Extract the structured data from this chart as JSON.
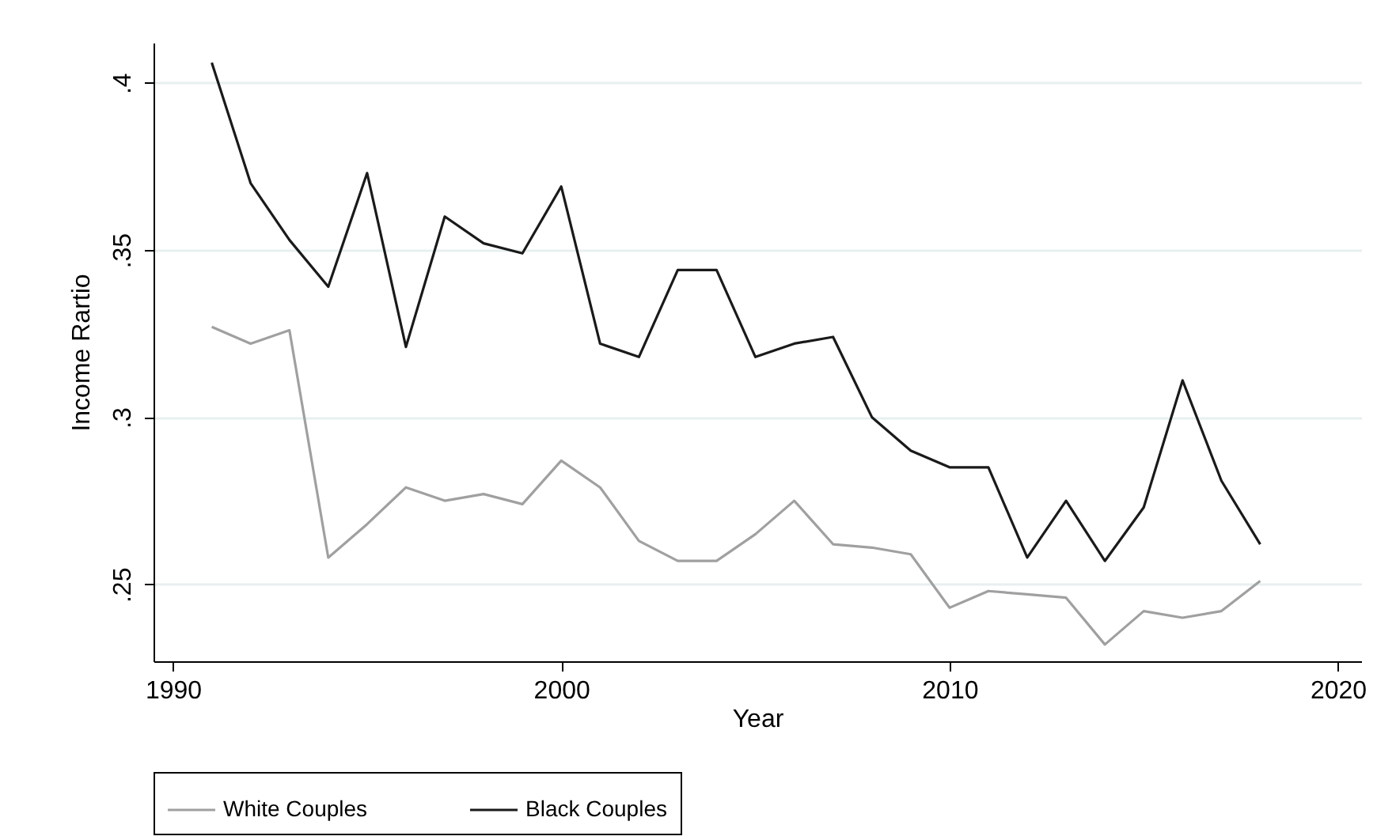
{
  "chart_data": {
    "type": "line",
    "xlabel": "Year",
    "ylabel": "Income Rartio",
    "x": [
      1991,
      1992,
      1993,
      1994,
      1995,
      1996,
      1997,
      1998,
      1999,
      2000,
      2001,
      2002,
      2003,
      2004,
      2005,
      2006,
      2007,
      2008,
      2009,
      2010,
      2011,
      2012,
      2013,
      2014,
      2015,
      2016,
      2017,
      2018
    ],
    "xlim": [
      1989.5,
      2020.6
    ],
    "xticks": [
      1990,
      2000,
      2010,
      2020
    ],
    "ylim": [
      0.227,
      0.412
    ],
    "yticks": [
      {
        "value": 0.25,
        "label": ".25"
      },
      {
        "value": 0.3,
        "label": ".3"
      },
      {
        "value": 0.35,
        "label": ".35"
      },
      {
        "value": 0.4,
        "label": ".4"
      }
    ],
    "grid": "y",
    "legend": "bottom",
    "series": [
      {
        "name": "White Couples",
        "color": "#a0a0a0",
        "values": [
          0.327,
          0.322,
          0.326,
          0.258,
          0.268,
          0.279,
          0.275,
          0.277,
          0.274,
          0.287,
          0.279,
          0.263,
          0.257,
          0.257,
          0.265,
          0.275,
          0.262,
          0.261,
          0.259,
          0.243,
          0.248,
          0.247,
          0.246,
          0.232,
          0.242,
          0.24,
          0.242,
          0.251
        ]
      },
      {
        "name": "Black Couples",
        "color": "#1a1a1a",
        "values": [
          0.406,
          0.37,
          0.353,
          0.339,
          0.373,
          0.321,
          0.36,
          0.352,
          0.349,
          0.369,
          0.322,
          0.318,
          0.344,
          0.344,
          0.318,
          0.322,
          0.324,
          0.3,
          0.29,
          0.285,
          0.285,
          0.258,
          0.275,
          0.257,
          0.273,
          0.311,
          0.281,
          0.262
        ]
      }
    ]
  }
}
